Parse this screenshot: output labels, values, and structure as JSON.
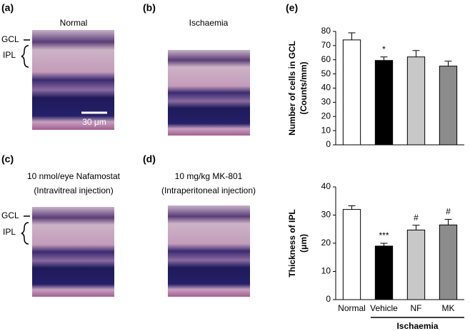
{
  "panels": [
    {
      "label": "(a)",
      "caption": [
        "Normal"
      ],
      "layers": [
        "GCL",
        "IPL"
      ],
      "scale_bar": "30 μm"
    },
    {
      "label": "(b)",
      "caption": [
        "Ischaemia"
      ]
    },
    {
      "label": "(c)",
      "caption": [
        "10 nmol/eye Nafamostat",
        "(Intravitreal injection)"
      ],
      "layers": [
        "GCL",
        "IPL"
      ]
    },
    {
      "label": "(d)",
      "caption": [
        "10 mg/kg MK-801",
        "(Intraperitoneal injection)"
      ]
    }
  ],
  "chart_label": "(e)",
  "chart_data": [
    {
      "type": "bar",
      "ylabel": [
        "Number of cells in GCL",
        "(Counts/mm)"
      ],
      "categories": [
        null,
        null,
        null,
        null
      ],
      "values": [
        74,
        59.5,
        62,
        55.5
      ],
      "errors": [
        5,
        2.5,
        4.5,
        3.5
      ],
      "colors": [
        "#ffffff",
        "#000000",
        "#c8c8c8",
        "#8c8c8c"
      ],
      "annotations": [
        null,
        "*",
        null,
        null
      ],
      "ylim": [
        0,
        80
      ],
      "yticks": [
        0,
        10,
        20,
        30,
        40,
        50,
        60,
        70,
        80
      ]
    },
    {
      "type": "bar",
      "ylabel": [
        "Thickness of IPL",
        "(μm)"
      ],
      "categories": [
        "Normal",
        "Vehicle",
        "NF",
        "MK"
      ],
      "values": [
        32,
        19,
        24.7,
        26.5
      ],
      "errors": [
        1.3,
        1,
        1.7,
        2
      ],
      "colors": [
        "#ffffff",
        "#000000",
        "#c8c8c8",
        "#8c8c8c"
      ],
      "annotations": [
        null,
        "***",
        "#",
        "#"
      ],
      "groups": [
        {
          "label": "Ischaemia",
          "categories": [
            "Vehicle",
            "NF",
            "MK"
          ]
        }
      ],
      "ylim": [
        0,
        40
      ],
      "yticks": [
        0,
        10,
        20,
        30,
        40
      ]
    }
  ]
}
